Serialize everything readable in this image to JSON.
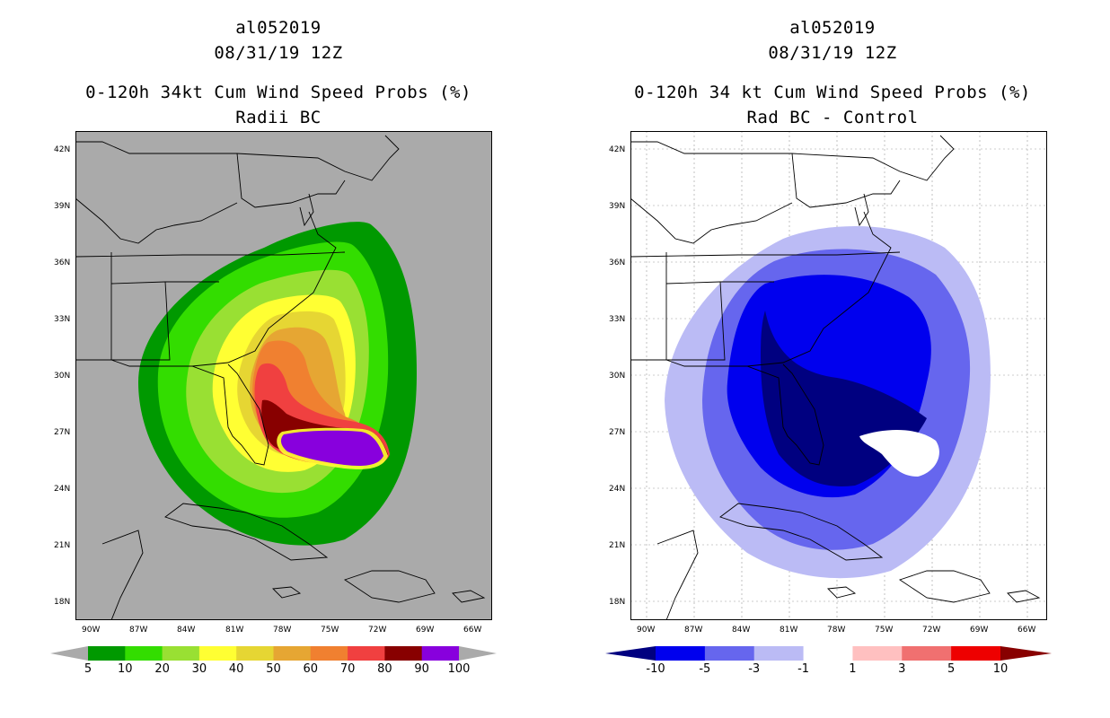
{
  "left": {
    "title_line1": "al052019",
    "title_line2": "08/31/19 12Z",
    "title_line3": "0-120h 34kt Cum Wind Speed Probs (%)",
    "title_line4": "Radii BC",
    "colorbar_labels": [
      "5",
      "10",
      "20",
      "30",
      "40",
      "50",
      "60",
      "70",
      "80",
      "90",
      "100"
    ],
    "colors": [
      "#009900",
      "#33dd00",
      "#99e033",
      "#ffff33",
      "#e6d633",
      "#e6a633",
      "#f08030",
      "#f04040",
      "#880000",
      "#8800dd"
    ],
    "land_color": "#aaaaaa"
  },
  "right": {
    "title_line1": "al052019",
    "title_line2": "08/31/19 12Z",
    "title_line3": "0-120h 34 kt Cum Wind Speed Probs (%)",
    "title_line4": "Rad BC - Control",
    "colorbar_labels": [
      "-10",
      "-5",
      "-3",
      "-1",
      "1",
      "3",
      "5",
      "10"
    ],
    "colors": [
      "#000080",
      "#0000ee",
      "#6666ee",
      "#bbbbf5",
      "#ffffff",
      "#ffc0c0",
      "#f07070",
      "#ee0000",
      "#880000"
    ]
  },
  "lat_labels": [
    "42N",
    "39N",
    "36N",
    "33N",
    "30N",
    "27N",
    "24N",
    "21N",
    "18N"
  ],
  "lon_labels": [
    "90W",
    "87W",
    "84W",
    "81W",
    "78W",
    "75W",
    "72W",
    "69W",
    "66W"
  ]
}
